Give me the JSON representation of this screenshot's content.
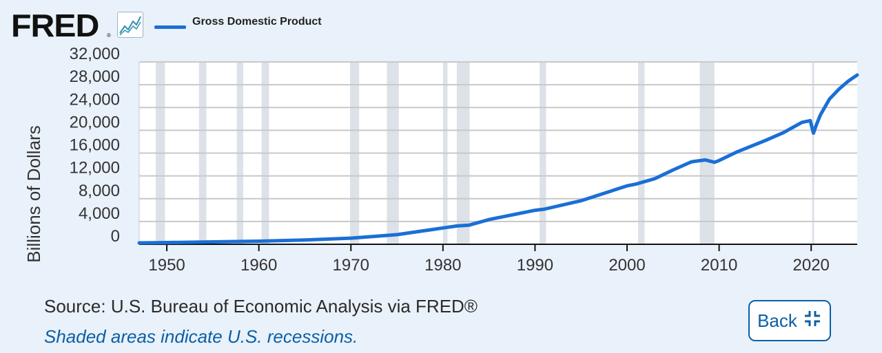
{
  "header": {
    "logo_text": "FRED",
    "logo_reg": "®",
    "graph_icon": "line-chart-icon"
  },
  "chart_data": {
    "type": "line",
    "title": "",
    "ylabel": "Billions of Dollars",
    "xlabel": "",
    "xlim": [
      1947,
      2025
    ],
    "ylim": [
      0,
      32000
    ],
    "yticks": [
      0,
      4000,
      8000,
      12000,
      16000,
      20000,
      24000,
      28000,
      32000
    ],
    "ytick_labels": [
      "0",
      "4,000",
      "8,000",
      "12,000",
      "16,000",
      "20,000",
      "24,000",
      "28,000",
      "32,000"
    ],
    "xticks": [
      1950,
      1960,
      1970,
      1980,
      1990,
      2000,
      2010,
      2020
    ],
    "xtick_labels": [
      "1950",
      "1960",
      "1970",
      "1980",
      "1990",
      "2000",
      "2010",
      "2020"
    ],
    "grid": true,
    "legend": "top-left",
    "colors": {
      "line": "#1a6fd6",
      "recession": "#dde2e8",
      "grid": "#c8c8c8"
    },
    "series": [
      {
        "name": "Gross Domestic Product",
        "x": [
          1947,
          1950,
          1955,
          1960,
          1965,
          1970,
          1975,
          1980,
          1981.5,
          1982.8,
          1985,
          1990,
          1991,
          1995,
          2000,
          2001,
          2003,
          2005,
          2007,
          2008.5,
          2009.5,
          2010,
          2012,
          2015,
          2017,
          2019,
          2019.9,
          2020.25,
          2020.6,
          2021,
          2022,
          2023,
          2024,
          2025
        ],
        "y": [
          243,
          300,
          426,
          543,
          743,
          1073,
          1685,
          2857,
          3207,
          3344,
          4339,
          5963,
          6158,
          7640,
          10251,
          10581,
          11512,
          13040,
          14474,
          14810,
          14400,
          14700,
          16250,
          18200,
          19600,
          21400,
          21700,
          19500,
          21100,
          22700,
          25500,
          27200,
          28600,
          29700
        ]
      }
    ],
    "recessions": [
      [
        1948.8,
        1949.8
      ],
      [
        1953.5,
        1954.3
      ],
      [
        1957.6,
        1958.3
      ],
      [
        1960.3,
        1961.1
      ],
      [
        1969.9,
        1970.9
      ],
      [
        1973.9,
        1975.2
      ],
      [
        1980.0,
        1980.5
      ],
      [
        1981.5,
        1982.9
      ],
      [
        1990.5,
        1991.2
      ],
      [
        2001.2,
        2001.9
      ],
      [
        2007.9,
        2009.5
      ],
      [
        2020.1,
        2020.3
      ]
    ]
  },
  "footer": {
    "source": "Source: U.S. Bureau of Economic Analysis via FRED®",
    "note": "Shaded areas indicate U.S. recessions.",
    "back_label": "Back",
    "back_icon": "collapse-icon"
  }
}
